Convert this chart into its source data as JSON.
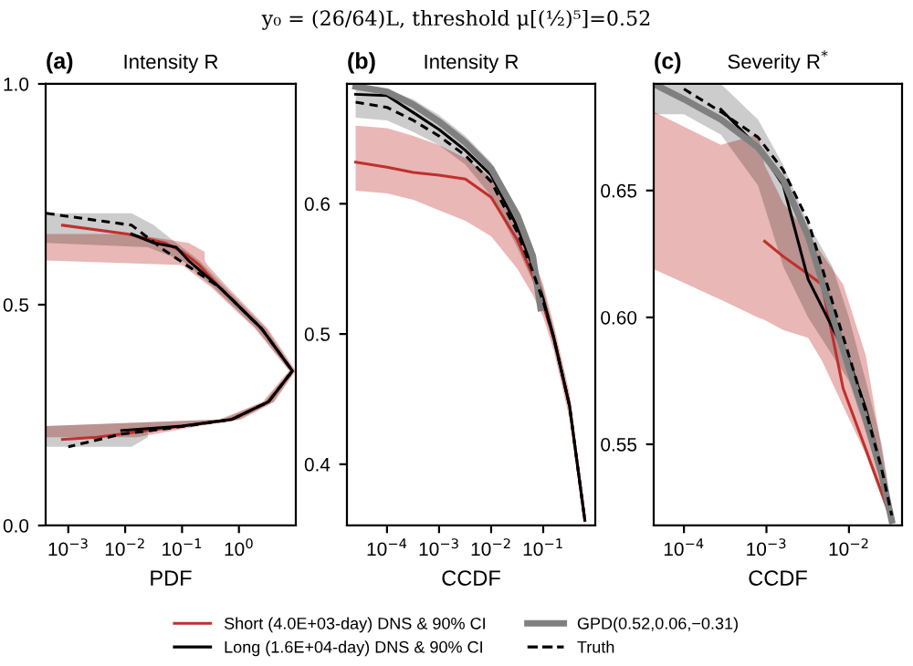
{
  "chart_data": [
    {
      "type": "line",
      "title": "(a)",
      "subtitle": "Intensity R",
      "xlabel": "PDF",
      "orientation": "horizontal",
      "log": "x",
      "annotations": [
        "y₀ = (26/64)L, threshold μ[(½)⁵]=0.52"
      ],
      "xlim": [
        0.0004,
        10
      ],
      "xticks": [
        {
          "value": 0.001,
          "label": "10$^{−3}$"
        },
        {
          "value": 0.01,
          "label": "10$^{−2}$"
        },
        {
          "value": 0.1,
          "label": "10$^{−1}$"
        },
        {
          "value": 1,
          "label": "10$^{0}$"
        }
      ],
      "ylim": [
        0,
        1
      ],
      "yticks": [
        {
          "value": 0,
          "label": "0.0"
        },
        {
          "value": 0.5,
          "label": "0.5"
        },
        {
          "value": 1,
          "label": "1.0"
        }
      ],
      "grid": false,
      "series": [
        {
          "color": "#c0302c",
          "line_style": "solid",
          "x": [
            0.68,
            0.66,
            0.64,
            0.62,
            0.6,
            0.59,
            0.54,
            0.446,
            0.35,
            0.28,
            0.24,
            0.225,
            0.2,
            0.195
          ],
          "values": [
            0.00079,
            0.011,
            0.05,
            0.1,
            0.16,
            0.2,
            0.45,
            2.5,
            8.7,
            3.3,
            0.74,
            0.1,
            0.0032,
            0.00079
          ],
          "lower": [
            null,
            0.0004,
            0.0004,
            0.0004,
            0.0004,
            0.1,
            0.32,
            1.9,
            7.6,
            2.6,
            0.45,
            0.0004,
            0.0004,
            null
          ],
          "upper": [
            null,
            0.013,
            0.13,
            0.25,
            0.25,
            0.28,
            0.63,
            3.2,
            10,
            4.2,
            1.1,
            0.2,
            0.016,
            null
          ]
        },
        {
          "color": "#000000",
          "line_style": "solid",
          "x": [
            0.707,
            0.68,
            0.66,
            0.64,
            0.63,
            0.6,
            0.54,
            0.446,
            0.35,
            0.28,
            0.24,
            0.225,
            0.215,
            0.2,
            0.178
          ],
          "values": [
            null,
            null,
            0.013,
            0.032,
            0.079,
            0.13,
            0.45,
            2.5,
            8.7,
            3.3,
            0.74,
            0.1,
            0.0087,
            null,
            null
          ],
          "lower": [
            0.0004,
            0.0004,
            0.0004,
            0.0004,
            0.025,
            0.1,
            0.35,
            2.0,
            7.9,
            2.8,
            0.5,
            0.0004,
            0.0004,
            0.0004,
            0.0004
          ],
          "upper": [
            0.013,
            0.032,
            0.05,
            0.079,
            0.1,
            0.2,
            0.56,
            3.0,
            9.5,
            4.0,
            1.0,
            0.13,
            0.025,
            0.025,
            0.013
          ]
        },
        {
          "color": "#000000",
          "line_style": "dashed",
          "x": [
            0.707,
            0.68,
            0.624,
            0.54,
            0.446,
            0.35,
            0.28,
            0.24,
            0.22,
            0.207,
            0.178
          ],
          "values": [
            0.00041,
            0.013,
            0.048,
            0.45,
            2.5,
            8.7,
            3.3,
            0.74,
            0.059,
            0.0087,
            0.001
          ]
        }
      ]
    },
    {
      "type": "line",
      "title": "(b)",
      "subtitle": "Intensity R",
      "xlabel": "CCDF",
      "log": "x",
      "legend": "bottom",
      "xlim": [
        1.7e-05,
        1.0
      ],
      "xticks": [
        {
          "value": 0.0001,
          "label": "10$^{−4}$"
        },
        {
          "value": 0.001,
          "label": "10$^{−3}$"
        },
        {
          "value": 0.01,
          "label": "10$^{−2}$"
        },
        {
          "value": 0.1,
          "label": "10$^{−1}$"
        }
      ],
      "ylim": [
        0.353,
        0.692
      ],
      "yticks": [
        0.4,
        0.5,
        0.6
      ],
      "grid": false,
      "series": [
        {
          "name": "Short (4.0E+03-day) DNS & 90% CI",
          "color": "#c0302c",
          "line_style": "solid",
          "x": [
            2.5e-05,
            0.0001,
            0.00032,
            0.001,
            0.0032,
            0.01,
            0.032,
            0.063,
            0.1,
            0.16,
            0.32,
            0.63
          ],
          "values": [
            0.632,
            0.628,
            0.624,
            0.622,
            0.619,
            0.605,
            0.572,
            0.545,
            0.522,
            0.497,
            0.445,
            0.357
          ],
          "lower": [
            0.61,
            0.608,
            0.603,
            0.595,
            0.587,
            0.575,
            0.55,
            0.53,
            0.513,
            0.487,
            0.435,
            0.354
          ],
          "upper": [
            0.66,
            0.658,
            0.652,
            0.645,
            0.635,
            0.62,
            0.588,
            0.56,
            0.538,
            0.507,
            0.455,
            0.362
          ]
        },
        {
          "name": "Long (1.6E+04-day) DNS & 90% CI",
          "color": "#000000",
          "line_style": "solid",
          "x": [
            2.5e-05,
            0.0001,
            0.00032,
            0.001,
            0.0032,
            0.01,
            0.032,
            0.063,
            0.1,
            0.16,
            0.32,
            0.63
          ],
          "values": [
            0.684,
            0.683,
            0.67,
            0.657,
            0.641,
            0.622,
            0.582,
            0.552,
            0.527,
            0.497,
            0.445,
            0.357
          ],
          "lower": [
            0.666,
            0.664,
            0.655,
            0.645,
            0.63,
            0.606,
            0.566,
            0.54,
            0.52,
            0.49,
            0.44,
            0.354
          ],
          "upper": [
            0.69,
            0.688,
            0.68,
            0.668,
            0.652,
            0.632,
            0.592,
            0.56,
            0.535,
            0.503,
            0.45,
            0.36
          ]
        },
        {
          "name": "GPD(0.52,0.06,−0.31)",
          "color": "#808080",
          "line_style": "solid",
          "x": [
            2.5e-05,
            0.0001,
            0.00032,
            0.001,
            0.0032,
            0.01,
            0.032,
            0.063,
            0.089
          ],
          "values": [
            0.69,
            0.686,
            0.676,
            0.663,
            0.647,
            0.627,
            0.591,
            0.56,
            0.52
          ]
        },
        {
          "name": "Truth",
          "color": "#000000",
          "line_style": "dashed",
          "x": [
            2.5e-05,
            0.0001,
            0.00032,
            0.001,
            0.0032,
            0.01,
            0.032,
            0.063,
            0.1,
            0.16,
            0.32,
            0.63
          ],
          "values": [
            0.678,
            0.674,
            0.664,
            0.652,
            0.637,
            0.617,
            0.578,
            0.548,
            0.525,
            0.497,
            0.445,
            0.357
          ]
        }
      ]
    },
    {
      "type": "line",
      "title": "(c)",
      "subtitle": "Severity R$^{*}$",
      "xlabel": "CCDF",
      "log": "x",
      "xlim": [
        4.3e-05,
        0.044
      ],
      "xticks": [
        {
          "value": 0.0001,
          "label": "10$^{−4}$"
        },
        {
          "value": 0.001,
          "label": "10$^{−3}$"
        },
        {
          "value": 0.01,
          "label": "10$^{−2}$"
        }
      ],
      "ylim": [
        0.518,
        0.692
      ],
      "yticks": [
        {
          "value": 0.55,
          "label": "0.55"
        },
        {
          "value": 0.6,
          "label": "0.60"
        },
        {
          "value": 0.65,
          "label": "0.65"
        }
      ],
      "grid": false,
      "series": [
        {
          "color": "#c0302c",
          "line_style": "solid",
          "x": [
            4.3e-05,
            0.00028,
            0.00079,
            0.00095,
            0.0016,
            0.0032,
            0.0047,
            0.0085,
            0.016,
            0.033
          ],
          "values": [
            null,
            null,
            null,
            0.63,
            0.624,
            0.617,
            0.613,
            0.572,
            0.548,
            0.52
          ],
          "lower": [
            0.619,
            0.607,
            0.6,
            0.599,
            0.595,
            0.592,
            0.583,
            0.565,
            0.546,
            0.518
          ],
          "upper": [
            0.681,
            0.668,
            0.672,
            0.66,
            0.645,
            0.633,
            0.625,
            0.613,
            0.585,
            0.525
          ]
        },
        {
          "color": "#000000",
          "line_style": "solid",
          "x": [
            4.3e-05,
            0.0001,
            0.00028,
            0.00079,
            0.0016,
            0.0032,
            0.0063,
            0.01,
            0.016,
            0.025,
            0.033
          ],
          "values": [
            null,
            null,
            0.682,
            0.667,
            0.652,
            0.615,
            0.596,
            0.583,
            0.564,
            0.54,
            0.52
          ],
          "lower": [
            0.68,
            0.68,
            0.672,
            0.652,
            0.62,
            0.6,
            0.585,
            0.575,
            0.555,
            0.535,
            0.518
          ],
          "upper": [
            0.692,
            0.692,
            0.692,
            0.678,
            0.66,
            0.637,
            0.62,
            0.6,
            0.575,
            0.55,
            0.525
          ]
        },
        {
          "color": "#808080",
          "line_style": "solid",
          "x": [
            4.3e-05,
            0.0001,
            0.00028,
            0.00079,
            0.0016,
            0.0032,
            0.0063,
            0.01,
            0.016,
            0.025,
            0.033
          ],
          "values": [
            0.692,
            0.686,
            0.678,
            0.667,
            0.654,
            0.632,
            0.601,
            0.58,
            0.56,
            0.538,
            0.52
          ]
        },
        {
          "color": "#000000",
          "line_style": "dashed",
          "x": [
            0.0001,
            0.00028,
            0.00079,
            0.0016,
            0.0032,
            0.0063,
            0.01,
            0.016,
            0.025,
            0.033
          ],
          "values": [
            0.69,
            0.681,
            0.671,
            0.658,
            0.638,
            0.606,
            0.585,
            0.563,
            0.54,
            0.522
          ]
        }
      ]
    }
  ]
}
